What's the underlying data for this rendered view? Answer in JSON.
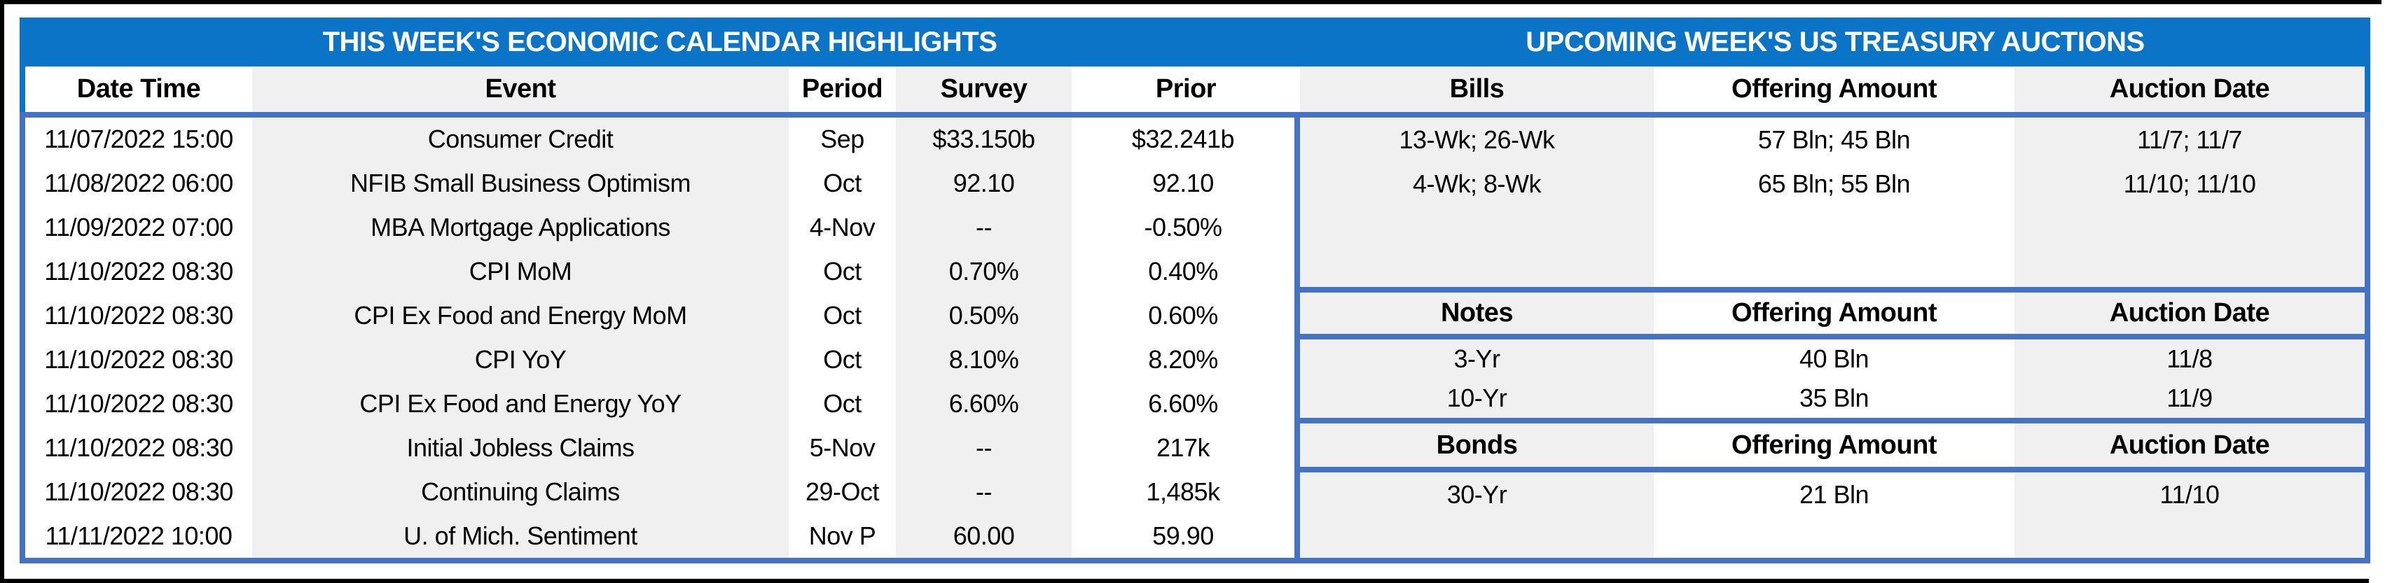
{
  "colors": {
    "title_bar_blue": "#0B74C6",
    "grid_blue": "#4472C4",
    "stripe_gray": "#F0F0F0",
    "frame_black": "#000000",
    "title_text": "#FFFFFF",
    "body_text": "#000000"
  },
  "calendar": {
    "title": "THIS WEEK'S ECONOMIC CALENDAR HIGHLIGHTS",
    "columns": {
      "date_time": "Date Time",
      "event": "Event",
      "period": "Period",
      "survey": "Survey",
      "prior": "Prior"
    },
    "rows": [
      {
        "date_time": "11/07/2022 15:00",
        "event": "Consumer Credit",
        "period": "Sep",
        "survey": "$33.150b",
        "prior": "$32.241b"
      },
      {
        "date_time": "11/08/2022 06:00",
        "event": "NFIB Small Business Optimism",
        "period": "Oct",
        "survey": "92.10",
        "prior": "92.10"
      },
      {
        "date_time": "11/09/2022 07:00",
        "event": "MBA Mortgage Applications",
        "period": "4-Nov",
        "survey": "--",
        "prior": "-0.50%"
      },
      {
        "date_time": "11/10/2022 08:30",
        "event": "CPI MoM",
        "period": "Oct",
        "survey": "0.70%",
        "prior": "0.40%"
      },
      {
        "date_time": "11/10/2022 08:30",
        "event": "CPI Ex Food and Energy MoM",
        "period": "Oct",
        "survey": "0.50%",
        "prior": "0.60%"
      },
      {
        "date_time": "11/10/2022 08:30",
        "event": "CPI YoY",
        "period": "Oct",
        "survey": "8.10%",
        "prior": "8.20%"
      },
      {
        "date_time": "11/10/2022 08:30",
        "event": "CPI Ex Food and Energy YoY",
        "period": "Oct",
        "survey": "6.60%",
        "prior": "6.60%"
      },
      {
        "date_time": "11/10/2022 08:30",
        "event": "Initial Jobless Claims",
        "period": "5-Nov",
        "survey": "--",
        "prior": "217k"
      },
      {
        "date_time": "11/10/2022 08:30",
        "event": "Continuing Claims",
        "period": "29-Oct",
        "survey": "--",
        "prior": "1,485k"
      },
      {
        "date_time": "11/11/2022 10:00",
        "event": "U. of Mich. Sentiment",
        "period": "Nov P",
        "survey": "60.00",
        "prior": "59.90"
      }
    ]
  },
  "auctions": {
    "title": "UPCOMING WEEK'S US TREASURY AUCTIONS",
    "sections": [
      {
        "type_label": "Bills",
        "offering_label": "Offering Amount",
        "date_label": "Auction Date",
        "rows": [
          {
            "security": "13-Wk; 26-Wk",
            "offering": "57 Bln; 45 Bln",
            "date": "11/7; 11/7"
          },
          {
            "security": "4-Wk; 8-Wk",
            "offering": "65 Bln; 55 Bln",
            "date": "11/10; 11/10"
          }
        ]
      },
      {
        "type_label": "Notes",
        "offering_label": "Offering Amount",
        "date_label": "Auction Date",
        "rows": [
          {
            "security": "3-Yr",
            "offering": "40 Bln",
            "date": "11/8"
          },
          {
            "security": "10-Yr",
            "offering": "35 Bln",
            "date": "11/9"
          }
        ]
      },
      {
        "type_label": "Bonds",
        "offering_label": "Offering Amount",
        "date_label": "Auction Date",
        "rows": [
          {
            "security": "30-Yr",
            "offering": "21 Bln",
            "date": "11/10"
          }
        ]
      }
    ]
  }
}
